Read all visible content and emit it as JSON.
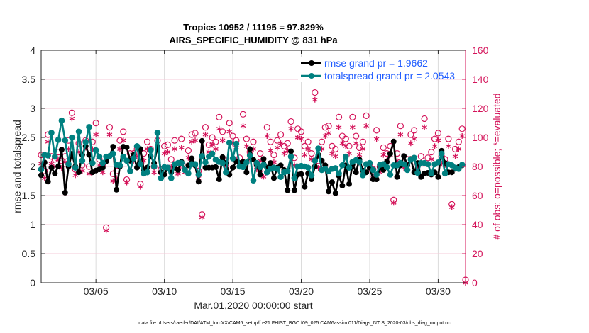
{
  "chart_data": {
    "type": "line",
    "title": "Tropics 10952 / 11195 = 97.829%",
    "subtitle": "AIRS_SPECIFIC_HUMIDITY @ 831 hPa",
    "xlabel": "Mar.01,2020 00:00:00 start",
    "ylabel": "rmse and totalspread",
    "y2label": "# of obs: o=possible; *=evaluated",
    "x_start": "2020-03-01 00:00",
    "x_step_hours": 6,
    "xlim_days": [
      0,
      31
    ],
    "x_ticks": [
      {
        "day": 4,
        "label": "03/05"
      },
      {
        "day": 9,
        "label": "03/10"
      },
      {
        "day": 14,
        "label": "03/15"
      },
      {
        "day": 19,
        "label": "03/20"
      },
      {
        "day": 24,
        "label": "03/25"
      },
      {
        "day": 29,
        "label": "03/30"
      }
    ],
    "ylim": [
      0,
      4
    ],
    "y_ticks": [
      "0",
      "0.5",
      "1",
      "1.5",
      "2",
      "2.5",
      "3",
      "3.5",
      "4"
    ],
    "y2lim": [
      0,
      160
    ],
    "y2_ticks": [
      "0",
      "20",
      "40",
      "60",
      "80",
      "100",
      "120",
      "140",
      "160"
    ],
    "grid": true,
    "legend_placement": "top-right",
    "series": [
      {
        "name": "rmse grand pr = 1.9662",
        "axis": "left",
        "color": "#000000",
        "marker": "asterisk-filled",
        "values": [
          1.85,
          2.07,
          1.74,
          1.98,
          1.88,
          2.0,
          2.29,
          1.55,
          2.0,
          2.22,
          2.0,
          1.9,
          2.2,
          2.35,
          2.2,
          1.9,
          1.93,
          1.95,
          1.98,
          2.09,
          2.18,
          2.34,
          1.6,
          2.0,
          2.34,
          2.33,
          2.1,
          2.2,
          1.98,
          2.3,
          1.94,
          1.98,
          2.18,
          2.06,
          2.34,
          1.9,
          1.86,
          1.98,
          1.9,
          1.98,
          1.94,
          2.08,
          1.94,
          2.02,
          2.14,
          2.02,
          1.74,
          2.44,
          1.98,
          1.98,
          1.98,
          1.99,
          1.78,
          2.16,
          2.06,
          1.86,
          1.98,
          2.09,
          2.06,
          2.08,
          1.9,
          2.3,
          2.12,
          2.02,
          1.86,
          2.13,
          1.98,
          2.06,
          1.8,
          1.98,
          2.02,
          1.94,
          1.59,
          2.26,
          1.59,
          1.86,
          1.87,
          1.65,
          1.88,
          1.78,
          2.0,
          2.2,
          2.1,
          2.02,
          1.57,
          1.73,
          1.54,
          1.84,
          1.67,
          2.02,
          1.7,
          2.04,
          1.9,
          2.12,
          1.93,
          1.9,
          1.98,
          1.78,
          1.78,
          1.98,
          1.94,
          2.08,
          2.22,
          2.43,
          1.82,
          2.02,
          2.18,
          2.02,
          2.13,
          1.9,
          2.06,
          1.82,
          1.88,
          1.89,
          1.86,
          1.9,
          1.82,
          2.27,
          2.06,
          1.9,
          1.9,
          1.96,
          1.99,
          2.02,
          null
        ]
      },
      {
        "name": "totalspread grand pr = 2.0543",
        "axis": "left",
        "color": "#008080",
        "marker": "filled-circle",
        "values": [
          1.95,
          2.2,
          2.19,
          2.58,
          2.17,
          2.46,
          2.79,
          2.45,
          2.04,
          2.5,
          1.98,
          2.6,
          2.1,
          2.42,
          2.68,
          2.06,
          2.28,
          2.17,
          2.06,
          2.17,
          2.18,
          2.22,
          2.03,
          2.02,
          2.17,
          2.1,
          1.92,
          2.14,
          2.35,
          2.04,
          1.88,
          1.9,
          2.28,
          2.0,
          2.58,
          1.8,
          1.99,
          1.98,
          1.8,
          2.04,
          2.06,
          2.06,
          1.94,
          1.88,
          2.04,
          2.04,
          1.86,
          2.18,
          2.07,
          2.17,
          2.22,
          2.12,
          2.08,
          2.06,
          1.9,
          2.41,
          2.14,
          2.39,
          2.0,
          1.99,
          2.07,
          2.19,
          1.76,
          2.06,
          1.99,
          2.03,
          1.9,
          1.96,
          1.98,
          1.96,
          1.82,
          1.9,
          1.92,
          2.17,
          1.8,
          2.0,
          2.01,
          2.0,
          1.98,
          1.85,
          2.1,
          2.31,
          1.94,
          1.96,
          1.92,
          1.96,
          1.97,
          1.88,
          2.02,
          2.17,
          1.98,
          2.08,
          2.11,
          2.08,
          1.85,
          2.04,
          2.06,
          1.94,
          1.86,
          2.03,
          2.04,
          1.99,
          1.86,
          2.02,
          2.02,
          2.06,
          2.04,
          1.94,
          2.12,
          2.15,
          1.89,
          2.06,
          2.06,
          2.04,
          1.88,
          2.04,
          2.07,
          2.22,
          1.88,
          2.04,
          2.02,
          1.98,
          1.96,
          2.03,
          null
        ]
      },
      {
        "name": "o=possible",
        "axis": "right",
        "color": "#d4145a",
        "marker": "open-circle",
        "values": [
          86,
          75,
          100,
          85,
          83,
          88,
          82,
          85,
          96,
          115,
          76,
          94,
          79,
          96,
          78,
          95,
          108,
          83,
          79,
          36,
          105,
          73,
          75,
          96,
          102,
          69,
          87,
          87,
          90,
          66,
          87,
          95,
          90,
          78,
          96,
          76,
          92,
          93,
          83,
          96,
          77,
          97,
          78,
          89,
          100,
          101,
          75,
          45,
          105,
          93,
          98,
          95,
          112,
          102,
          82,
          108,
          99,
          96,
          84,
          114,
          97,
          88,
          95,
          80,
          87,
          73,
          105,
          95,
          86,
          96,
          100,
          92,
          94,
          109,
          84,
          104,
          102,
          92,
          95,
          87,
          129,
          82,
          95,
          105,
          106,
          92,
          90,
          112,
          99,
          97,
          92,
          112,
          99,
          91,
          95,
          113,
          80,
          76,
          103,
          78,
          91,
          87,
          92,
          55,
          87,
          106,
          81,
          83,
          100,
          103,
          80,
          85,
          111,
          84,
          88,
          97,
          101,
          85,
          83,
          97,
          52,
          90,
          95,
          104,
          0
        ]
      },
      {
        "name": "*=evaluated",
        "axis": "right",
        "color": "#d4145a",
        "marker": "asterisk",
        "values": [
          82,
          72,
          97,
          82,
          80,
          85,
          79,
          83,
          92,
          113,
          74,
          90,
          77,
          93,
          75,
          92,
          102,
          81,
          76,
          36,
          102,
          70,
          72,
          92,
          98,
          69,
          84,
          84,
          87,
          66,
          84,
          92,
          87,
          76,
          92,
          74,
          89,
          90,
          80,
          92,
          75,
          93,
          76,
          86,
          97,
          98,
          72,
          45,
          102,
          90,
          95,
          92,
          106,
          98,
          80,
          104,
          96,
          93,
          82,
          108,
          94,
          85,
          92,
          78,
          84,
          73,
          101,
          91,
          83,
          93,
          96,
          89,
          91,
          106,
          81,
          100,
          99,
          88,
          92,
          85,
          126,
          79,
          92,
          101,
          103,
          89,
          87,
          107,
          96,
          94,
          89,
          107,
          96,
          88,
          92,
          108,
          78,
          74,
          99,
          76,
          88,
          84,
          88,
          55,
          84,
          102,
          79,
          81,
          96,
          99,
          78,
          83,
          107,
          82,
          85,
          94,
          98,
          82,
          81,
          94,
          52,
          87,
          92,
          101,
          0
        ]
      }
    ]
  },
  "footer": "data file: /Users/raeder/DAI/ATM_forcXX/CAM6_setup/f.e21.FHIST_BGC.f09_025.CAM6assim.011/Diags_NTrS_2020-03/obs_diag_output.nc"
}
